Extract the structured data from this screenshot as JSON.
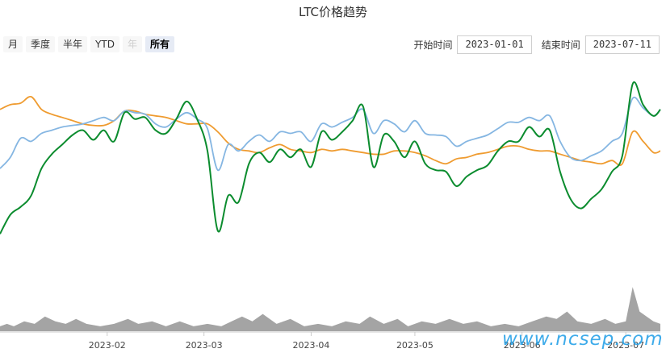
{
  "title": "LTC价格趋势",
  "range_buttons": [
    {
      "label": "月",
      "state": "normal"
    },
    {
      "label": "季度",
      "state": "normal"
    },
    {
      "label": "半年",
      "state": "normal"
    },
    {
      "label": "YTD",
      "state": "normal"
    },
    {
      "label": "年",
      "state": "disabled"
    },
    {
      "label": "所有",
      "state": "active"
    }
  ],
  "date_range": {
    "start_label": "开始时间",
    "start_value": "2023-01-01",
    "end_label": "结束时间",
    "end_value": "2023-07-11"
  },
  "watermark": "www.ncsep.com",
  "colors": {
    "green": "#0b8c2e",
    "blue": "#85b6e2",
    "orange": "#ef9b2f",
    "volume": "#9a9a9a"
  },
  "chart_data": {
    "type": "line",
    "x_ticks": [
      "2023-02",
      "2023-03",
      "2023-04",
      "2023-05",
      "2023-06",
      "2023-07"
    ],
    "x_range": [
      "2023-01-01",
      "2023-07-11"
    ],
    "y_axis_visible": false,
    "y_range": [
      0,
      100
    ],
    "series": [
      {
        "color": "#0b8c2e",
        "points": [
          [
            "2023-01-01",
            14
          ],
          [
            "2023-01-04",
            26
          ],
          [
            "2023-01-07",
            31
          ],
          [
            "2023-01-10",
            38
          ],
          [
            "2023-01-13",
            55
          ],
          [
            "2023-01-16",
            64
          ],
          [
            "2023-01-19",
            70
          ],
          [
            "2023-01-22",
            76
          ],
          [
            "2023-01-25",
            79
          ],
          [
            "2023-01-28",
            73
          ],
          [
            "2023-01-31",
            79
          ],
          [
            "2023-02-03",
            72
          ],
          [
            "2023-02-06",
            90
          ],
          [
            "2023-02-09",
            86
          ],
          [
            "2023-02-12",
            87
          ],
          [
            "2023-02-15",
            79
          ],
          [
            "2023-02-18",
            77
          ],
          [
            "2023-02-21",
            86
          ],
          [
            "2023-02-24",
            97
          ],
          [
            "2023-02-27",
            86
          ],
          [
            "2023-03-02",
            66
          ],
          [
            "2023-03-05",
            16
          ],
          [
            "2023-03-08",
            38
          ],
          [
            "2023-03-11",
            34
          ],
          [
            "2023-03-14",
            58
          ],
          [
            "2023-03-17",
            65
          ],
          [
            "2023-03-20",
            59
          ],
          [
            "2023-03-23",
            67
          ],
          [
            "2023-03-26",
            62
          ],
          [
            "2023-03-29",
            67
          ],
          [
            "2023-04-01",
            56
          ],
          [
            "2023-04-04",
            78
          ],
          [
            "2023-04-07",
            73
          ],
          [
            "2023-04-10",
            78
          ],
          [
            "2023-04-13",
            85
          ],
          [
            "2023-04-16",
            94
          ],
          [
            "2023-04-19",
            56
          ],
          [
            "2023-04-22",
            76
          ],
          [
            "2023-04-25",
            72
          ],
          [
            "2023-04-28",
            62
          ],
          [
            "2023-05-01",
            72
          ],
          [
            "2023-05-04",
            58
          ],
          [
            "2023-05-07",
            54
          ],
          [
            "2023-05-10",
            53
          ],
          [
            "2023-05-13",
            44
          ],
          [
            "2023-05-16",
            50
          ],
          [
            "2023-05-19",
            54
          ],
          [
            "2023-05-22",
            57
          ],
          [
            "2023-05-25",
            66
          ],
          [
            "2023-05-28",
            72
          ],
          [
            "2023-05-31",
            72
          ],
          [
            "2023-06-03",
            81
          ],
          [
            "2023-06-06",
            75
          ],
          [
            "2023-06-09",
            79
          ],
          [
            "2023-06-12",
            53
          ],
          [
            "2023-06-15",
            36
          ],
          [
            "2023-06-18",
            30
          ],
          [
            "2023-06-21",
            36
          ],
          [
            "2023-06-24",
            42
          ],
          [
            "2023-06-27",
            53
          ],
          [
            "2023-06-30",
            63
          ],
          [
            "2023-07-03",
            108
          ],
          [
            "2023-07-06",
            95
          ],
          [
            "2023-07-09",
            88
          ],
          [
            "2023-07-11",
            92
          ]
        ]
      },
      {
        "color": "#85b6e2",
        "points": [
          [
            "2023-01-01",
            55
          ],
          [
            "2023-01-04",
            62
          ],
          [
            "2023-01-07",
            74
          ],
          [
            "2023-01-10",
            72
          ],
          [
            "2023-01-13",
            77
          ],
          [
            "2023-01-16",
            79
          ],
          [
            "2023-01-19",
            81
          ],
          [
            "2023-01-22",
            82
          ],
          [
            "2023-01-25",
            83
          ],
          [
            "2023-01-28",
            85
          ],
          [
            "2023-01-31",
            87
          ],
          [
            "2023-02-03",
            85
          ],
          [
            "2023-02-06",
            91
          ],
          [
            "2023-02-09",
            90
          ],
          [
            "2023-02-12",
            89
          ],
          [
            "2023-02-15",
            83
          ],
          [
            "2023-02-18",
            81
          ],
          [
            "2023-02-21",
            86
          ],
          [
            "2023-02-24",
            90
          ],
          [
            "2023-02-27",
            86
          ],
          [
            "2023-03-02",
            80
          ],
          [
            "2023-03-05",
            54
          ],
          [
            "2023-03-08",
            70
          ],
          [
            "2023-03-11",
            66
          ],
          [
            "2023-03-14",
            72
          ],
          [
            "2023-03-17",
            76
          ],
          [
            "2023-03-20",
            72
          ],
          [
            "2023-03-23",
            78
          ],
          [
            "2023-03-26",
            77
          ],
          [
            "2023-03-29",
            78
          ],
          [
            "2023-04-01",
            72
          ],
          [
            "2023-04-04",
            83
          ],
          [
            "2023-04-07",
            81
          ],
          [
            "2023-04-10",
            84
          ],
          [
            "2023-04-13",
            87
          ],
          [
            "2023-04-16",
            92
          ],
          [
            "2023-04-19",
            77
          ],
          [
            "2023-04-22",
            85
          ],
          [
            "2023-04-25",
            83
          ],
          [
            "2023-04-28",
            78
          ],
          [
            "2023-05-01",
            85
          ],
          [
            "2023-05-04",
            77
          ],
          [
            "2023-05-07",
            76
          ],
          [
            "2023-05-10",
            75
          ],
          [
            "2023-05-13",
            69
          ],
          [
            "2023-05-16",
            72
          ],
          [
            "2023-05-19",
            74
          ],
          [
            "2023-05-22",
            76
          ],
          [
            "2023-05-25",
            80
          ],
          [
            "2023-05-28",
            84
          ],
          [
            "2023-05-31",
            84
          ],
          [
            "2023-06-03",
            87
          ],
          [
            "2023-06-06",
            85
          ],
          [
            "2023-06-09",
            88
          ],
          [
            "2023-06-12",
            72
          ],
          [
            "2023-06-15",
            62
          ],
          [
            "2023-06-18",
            60
          ],
          [
            "2023-06-21",
            63
          ],
          [
            "2023-06-24",
            66
          ],
          [
            "2023-06-27",
            72
          ],
          [
            "2023-06-30",
            77
          ],
          [
            "2023-07-03",
            99
          ],
          [
            "2023-07-06",
            93
          ],
          [
            "2023-07-09",
            88
          ],
          [
            "2023-07-11",
            92
          ]
        ]
      },
      {
        "color": "#ef9b2f",
        "points": [
          [
            "2023-01-01",
            92
          ],
          [
            "2023-01-04",
            95
          ],
          [
            "2023-01-07",
            96
          ],
          [
            "2023-01-10",
            100
          ],
          [
            "2023-01-13",
            92
          ],
          [
            "2023-01-16",
            89
          ],
          [
            "2023-01-19",
            87
          ],
          [
            "2023-01-22",
            85
          ],
          [
            "2023-01-25",
            83
          ],
          [
            "2023-01-28",
            82
          ],
          [
            "2023-01-31",
            82
          ],
          [
            "2023-02-03",
            85
          ],
          [
            "2023-02-06",
            91
          ],
          [
            "2023-02-09",
            91
          ],
          [
            "2023-02-12",
            89
          ],
          [
            "2023-02-15",
            88
          ],
          [
            "2023-02-18",
            87
          ],
          [
            "2023-02-21",
            85
          ],
          [
            "2023-02-24",
            83
          ],
          [
            "2023-02-27",
            83
          ],
          [
            "2023-03-02",
            83
          ],
          [
            "2023-03-05",
            78
          ],
          [
            "2023-03-08",
            71
          ],
          [
            "2023-03-11",
            67
          ],
          [
            "2023-03-14",
            66
          ],
          [
            "2023-03-17",
            65
          ],
          [
            "2023-03-20",
            68
          ],
          [
            "2023-03-23",
            70
          ],
          [
            "2023-03-26",
            67
          ],
          [
            "2023-03-29",
            66
          ],
          [
            "2023-04-01",
            65
          ],
          [
            "2023-04-04",
            67
          ],
          [
            "2023-04-07",
            66
          ],
          [
            "2023-04-10",
            67
          ],
          [
            "2023-04-13",
            66
          ],
          [
            "2023-04-16",
            65
          ],
          [
            "2023-04-19",
            64
          ],
          [
            "2023-04-22",
            64
          ],
          [
            "2023-04-25",
            66
          ],
          [
            "2023-04-28",
            66
          ],
          [
            "2023-05-01",
            65
          ],
          [
            "2023-05-04",
            63
          ],
          [
            "2023-05-07",
            60
          ],
          [
            "2023-05-10",
            58
          ],
          [
            "2023-05-13",
            61
          ],
          [
            "2023-05-16",
            62
          ],
          [
            "2023-05-19",
            64
          ],
          [
            "2023-05-22",
            65
          ],
          [
            "2023-05-25",
            67
          ],
          [
            "2023-05-28",
            69
          ],
          [
            "2023-05-31",
            69
          ],
          [
            "2023-06-03",
            67
          ],
          [
            "2023-06-06",
            66
          ],
          [
            "2023-06-09",
            66
          ],
          [
            "2023-06-12",
            64
          ],
          [
            "2023-06-15",
            62
          ],
          [
            "2023-06-18",
            60
          ],
          [
            "2023-06-21",
            59
          ],
          [
            "2023-06-24",
            58
          ],
          [
            "2023-06-27",
            60
          ],
          [
            "2023-06-30",
            58
          ],
          [
            "2023-07-03",
            78
          ],
          [
            "2023-07-06",
            72
          ],
          [
            "2023-07-09",
            65
          ],
          [
            "2023-07-11",
            66
          ]
        ]
      }
    ],
    "volume": [
      [
        "2023-01-01",
        2
      ],
      [
        "2023-01-03",
        3
      ],
      [
        "2023-01-05",
        2
      ],
      [
        "2023-01-08",
        4
      ],
      [
        "2023-01-11",
        3
      ],
      [
        "2023-01-14",
        6
      ],
      [
        "2023-01-17",
        4
      ],
      [
        "2023-01-20",
        3
      ],
      [
        "2023-01-23",
        5
      ],
      [
        "2023-01-26",
        3
      ],
      [
        "2023-01-30",
        2
      ],
      [
        "2023-02-03",
        3
      ],
      [
        "2023-02-07",
        5
      ],
      [
        "2023-02-10",
        3
      ],
      [
        "2023-02-14",
        4
      ],
      [
        "2023-02-18",
        2
      ],
      [
        "2023-02-22",
        4
      ],
      [
        "2023-02-26",
        2
      ],
      [
        "2023-03-02",
        3
      ],
      [
        "2023-03-06",
        2
      ],
      [
        "2023-03-09",
        4
      ],
      [
        "2023-03-12",
        6
      ],
      [
        "2023-03-15",
        4
      ],
      [
        "2023-03-18",
        7
      ],
      [
        "2023-03-22",
        3
      ],
      [
        "2023-03-26",
        5
      ],
      [
        "2023-03-30",
        2
      ],
      [
        "2023-04-03",
        3
      ],
      [
        "2023-04-07",
        2
      ],
      [
        "2023-04-11",
        4
      ],
      [
        "2023-04-15",
        3
      ],
      [
        "2023-04-18",
        6
      ],
      [
        "2023-04-22",
        3
      ],
      [
        "2023-04-26",
        5
      ],
      [
        "2023-04-29",
        2
      ],
      [
        "2023-05-03",
        4
      ],
      [
        "2023-05-07",
        3
      ],
      [
        "2023-05-11",
        5
      ],
      [
        "2023-05-15",
        3
      ],
      [
        "2023-05-19",
        4
      ],
      [
        "2023-05-23",
        2
      ],
      [
        "2023-05-27",
        3
      ],
      [
        "2023-05-31",
        2
      ],
      [
        "2023-06-04",
        4
      ],
      [
        "2023-06-08",
        6
      ],
      [
        "2023-06-11",
        5
      ],
      [
        "2023-06-14",
        8
      ],
      [
        "2023-06-17",
        4
      ],
      [
        "2023-06-21",
        3
      ],
      [
        "2023-06-25",
        5
      ],
      [
        "2023-06-28",
        3
      ],
      [
        "2023-07-01",
        4
      ],
      [
        "2023-07-03",
        18
      ],
      [
        "2023-07-05",
        8
      ],
      [
        "2023-07-07",
        6
      ],
      [
        "2023-07-09",
        4
      ],
      [
        "2023-07-11",
        3
      ]
    ],
    "volume_max": 20
  }
}
